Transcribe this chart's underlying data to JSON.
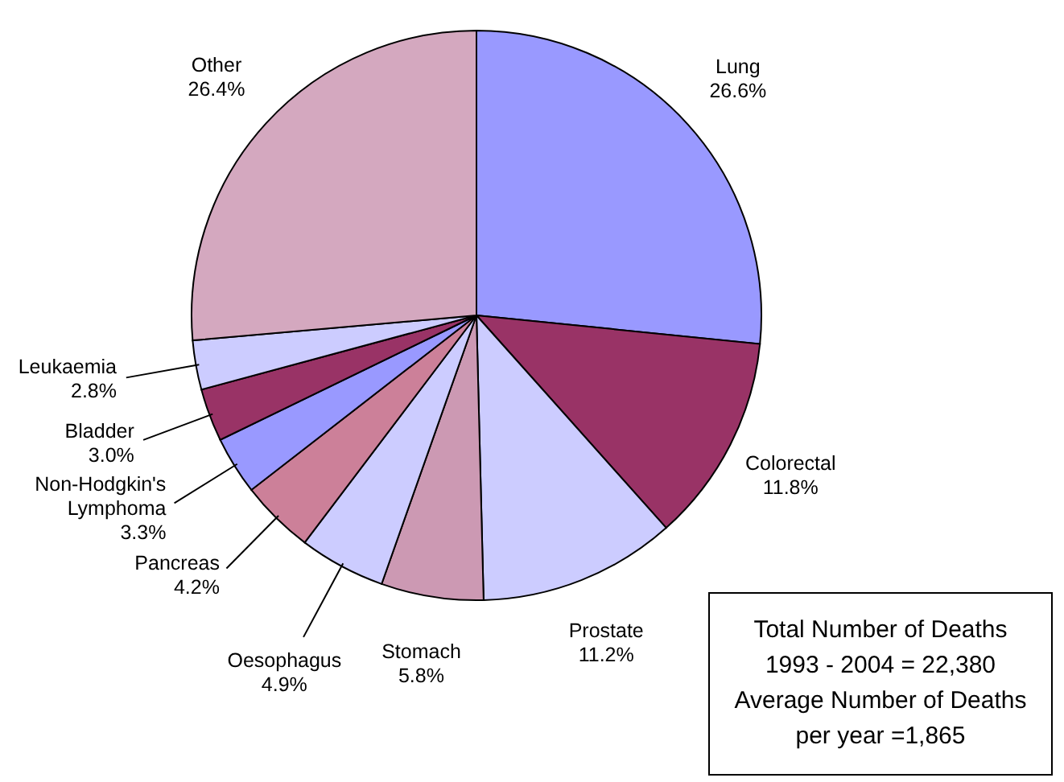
{
  "chart_data": {
    "type": "pie",
    "categories": [
      "Lung",
      "Colorectal",
      "Prostate",
      "Stomach",
      "Oesophagus",
      "Pancreas",
      "Non-Hodgkin's Lymphoma",
      "Bladder",
      "Leukaemia",
      "Other"
    ],
    "values": [
      26.6,
      11.8,
      11.2,
      5.8,
      4.9,
      4.2,
      3.3,
      3.0,
      2.8,
      26.4
    ],
    "value_labels": [
      "26.6%",
      "11.8%",
      "11.2%",
      "5.8%",
      "4.9%",
      "4.2%",
      "3.3%",
      "3.0%",
      "2.8%",
      "26.4%"
    ],
    "colors": [
      "#9999ff",
      "#993366",
      "#ccccff",
      "#cc99b3",
      "#ccccff",
      "#cc8099",
      "#9999ff",
      "#993366",
      "#ccccff",
      "#d4a8bf"
    ],
    "annotations": [
      "Total Number of Deaths",
      "1993 - 2004 = 22,380",
      "Average Number of Deaths",
      "per year =1,865"
    ]
  }
}
